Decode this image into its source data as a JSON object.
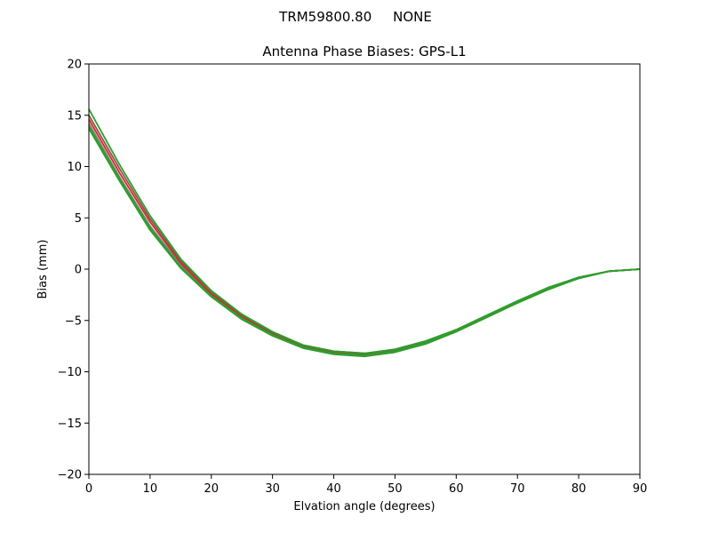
{
  "figure": {
    "suptitle": "TRM59800.80     NONE"
  },
  "chart_data": {
    "type": "line",
    "title": "Antenna Phase Biases: GPS-L1",
    "xlabel": "Elvation angle (degrees)",
    "ylabel": "Bias (mm)",
    "xlim": [
      0,
      90
    ],
    "ylim": [
      -20,
      20
    ],
    "xticks": [
      0,
      10,
      20,
      30,
      40,
      50,
      60,
      70,
      80,
      90
    ],
    "yticks": [
      -20,
      -15,
      -10,
      -5,
      0,
      5,
      10,
      15,
      20
    ],
    "xtick_labels": [
      "0",
      "10",
      "20",
      "30",
      "40",
      "50",
      "60",
      "70",
      "80",
      "90"
    ],
    "ytick_labels": [
      "−20",
      "−15",
      "−10",
      "−5",
      "0",
      "5",
      "10",
      "15",
      "20"
    ],
    "grid": false,
    "legend": "none",
    "x": [
      0,
      5,
      10,
      15,
      20,
      25,
      30,
      35,
      40,
      45,
      50,
      55,
      60,
      65,
      70,
      75,
      80,
      85,
      90
    ],
    "series": [
      {
        "color": "#2ca02c",
        "values": [
          13.7,
          8.6,
          3.8,
          0.1,
          -2.7,
          -4.9,
          -6.5,
          -7.7,
          -8.3,
          -8.5,
          -8.1,
          -7.3,
          -6.1,
          -4.7,
          -3.3,
          -2.0,
          -0.9,
          -0.2,
          0.0
        ]
      },
      {
        "color": "#7f7f7f",
        "values": [
          14.2,
          9.0,
          4.2,
          0.4,
          -2.5,
          -4.7,
          -6.4,
          -7.6,
          -8.2,
          -8.4,
          -8.0,
          -7.2,
          -6.0,
          -4.6,
          -3.2,
          -1.9,
          -0.9,
          -0.2,
          0.0
        ]
      },
      {
        "color": "#d62728",
        "values": [
          14.6,
          9.4,
          4.6,
          0.6,
          -2.4,
          -4.6,
          -6.3,
          -7.5,
          -8.1,
          -8.3,
          -7.9,
          -7.1,
          -6.0,
          -4.6,
          -3.2,
          -1.9,
          -0.8,
          -0.2,
          0.0
        ]
      },
      {
        "color": "#8c564b",
        "values": [
          15.0,
          9.8,
          4.9,
          0.8,
          -2.2,
          -4.5,
          -6.2,
          -7.4,
          -8.0,
          -8.2,
          -7.9,
          -7.1,
          -5.9,
          -4.5,
          -3.1,
          -1.8,
          -0.8,
          -0.2,
          0.0
        ]
      },
      {
        "color": "#2ca02c",
        "values": [
          15.6,
          10.2,
          5.2,
          1.0,
          -2.1,
          -4.4,
          -6.1,
          -7.4,
          -8.0,
          -8.2,
          -7.8,
          -7.0,
          -5.9,
          -4.5,
          -3.1,
          -1.8,
          -0.8,
          -0.2,
          0.0
        ]
      },
      {
        "color": "#2ca02c",
        "values": [
          13.9,
          8.8,
          4.0,
          0.2,
          -2.6,
          -4.8,
          -6.4,
          -7.6,
          -8.2,
          -8.4,
          -8.0,
          -7.2,
          -6.0,
          -4.6,
          -3.2,
          -1.9,
          -0.9,
          -0.2,
          0.0
        ]
      }
    ]
  }
}
